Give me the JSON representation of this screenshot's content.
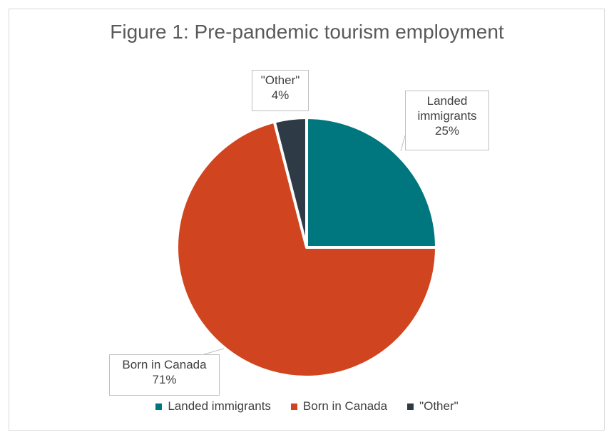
{
  "chart_data": {
    "type": "pie",
    "title": "Figure 1: Pre-pandemic tourism employment",
    "slices": [
      {
        "name": "Landed immigrants",
        "value": 25,
        "label": "25%",
        "color": "#00777F"
      },
      {
        "name": "Born in Canada",
        "value": 71,
        "label": "71%",
        "color": "#D0451F"
      },
      {
        "name": "\"Other\"",
        "value": 4,
        "label": "4%",
        "color": "#2E3B47"
      }
    ],
    "legend_position": "bottom"
  }
}
